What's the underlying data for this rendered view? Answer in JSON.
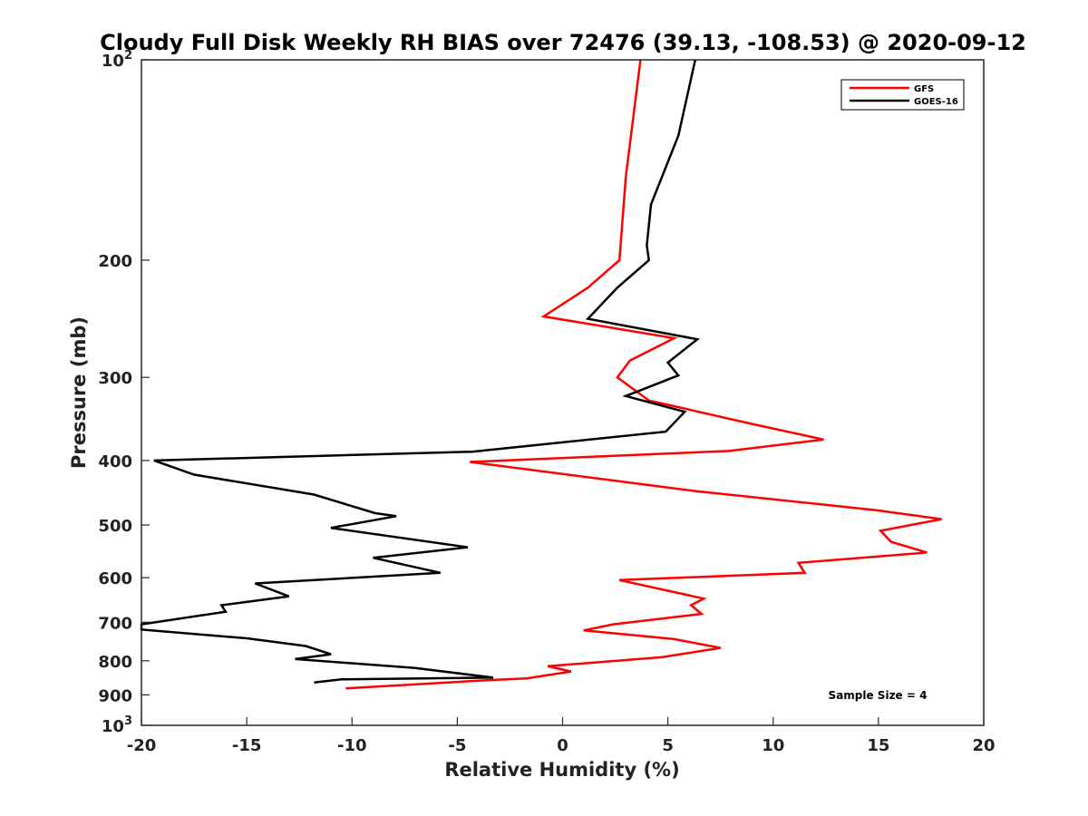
{
  "chart_data": {
    "type": "line",
    "title": "Cloudy Full Disk Weekly RH BIAS over 72476 (39.13, -108.53) @ 2020-09-12",
    "xlabel": "Relative Humidity (%)",
    "ylabel": "Pressure (mb)",
    "xlim": [
      -20,
      20
    ],
    "ylim": [
      100,
      1000
    ],
    "yscale": "log",
    "y_reversed": true,
    "x_ticks": [
      "-20",
      "-15",
      "-10",
      "-5",
      "0",
      "5",
      "10",
      "15",
      "20"
    ],
    "y_ticks": [
      {
        "value": 100,
        "base": "10",
        "exp": "2"
      },
      {
        "value": 200,
        "label": "200"
      },
      {
        "value": 300,
        "label": "300"
      },
      {
        "value": 400,
        "label": "400"
      },
      {
        "value": 500,
        "label": "500"
      },
      {
        "value": 600,
        "label": "600"
      },
      {
        "value": 700,
        "label": "700"
      },
      {
        "value": 800,
        "label": "800"
      },
      {
        "value": 900,
        "label": "900"
      },
      {
        "value": 1000,
        "base": "10",
        "exp": "3"
      }
    ],
    "grid": false,
    "legend_position": "top-right",
    "annotation": "Sample Size = 4",
    "series": [
      {
        "name": "GFS",
        "color": "#ff0000",
        "points": [
          [
            3.7,
            100
          ],
          [
            3.0,
            150
          ],
          [
            2.7,
            200
          ],
          [
            1.2,
            220
          ],
          [
            -0.9,
            243
          ],
          [
            5.3,
            262
          ],
          [
            3.2,
            283
          ],
          [
            2.6,
            300
          ],
          [
            4.1,
            325
          ],
          [
            9.1,
            353
          ],
          [
            12.4,
            372
          ],
          [
            7.9,
            387
          ],
          [
            -4.4,
            402
          ],
          [
            6.4,
            445
          ],
          [
            14.9,
            475
          ],
          [
            18.0,
            490
          ],
          [
            15.1,
            510
          ],
          [
            15.6,
            530
          ],
          [
            17.3,
            550
          ],
          [
            11.2,
            570
          ],
          [
            11.5,
            590
          ],
          [
            2.7,
            605
          ],
          [
            6.7,
            645
          ],
          [
            6.1,
            660
          ],
          [
            6.6,
            680
          ],
          [
            2.4,
            705
          ],
          [
            1.0,
            720
          ],
          [
            5.3,
            742
          ],
          [
            7.5,
            765
          ],
          [
            4.7,
            790
          ],
          [
            -0.7,
            815
          ],
          [
            0.4,
            830
          ],
          [
            -1.7,
            850
          ],
          [
            -3.5,
            855
          ],
          [
            -10.3,
            880
          ]
        ]
      },
      {
        "name": "GOES-16",
        "color": "#000000",
        "points": [
          [
            6.3,
            100
          ],
          [
            5.5,
            130
          ],
          [
            4.2,
            165
          ],
          [
            4.0,
            190
          ],
          [
            4.1,
            200
          ],
          [
            2.6,
            220
          ],
          [
            1.2,
            245
          ],
          [
            6.4,
            263
          ],
          [
            5.0,
            285
          ],
          [
            5.5,
            298
          ],
          [
            3.0,
            320
          ],
          [
            5.8,
            338
          ],
          [
            4.9,
            362
          ],
          [
            -4.3,
            388
          ],
          [
            -19.4,
            400
          ],
          [
            -17.5,
            420
          ],
          [
            -11.8,
            450
          ],
          [
            -8.9,
            480
          ],
          [
            -7.9,
            485
          ],
          [
            -11.0,
            505
          ],
          [
            -4.5,
            540
          ],
          [
            -9.0,
            560
          ],
          [
            -5.8,
            590
          ],
          [
            -14.6,
            612
          ],
          [
            -13.0,
            640
          ],
          [
            -16.2,
            660
          ],
          [
            -16.0,
            675
          ],
          [
            -20.0,
            705
          ],
          [
            -20.0,
            718
          ],
          [
            -15.0,
            740
          ],
          [
            -12.2,
            760
          ],
          [
            -11.0,
            782
          ],
          [
            -12.7,
            795
          ],
          [
            -7.0,
            820
          ],
          [
            -3.3,
            848
          ],
          [
            -10.5,
            853
          ],
          [
            -11.8,
            862
          ]
        ]
      }
    ]
  }
}
